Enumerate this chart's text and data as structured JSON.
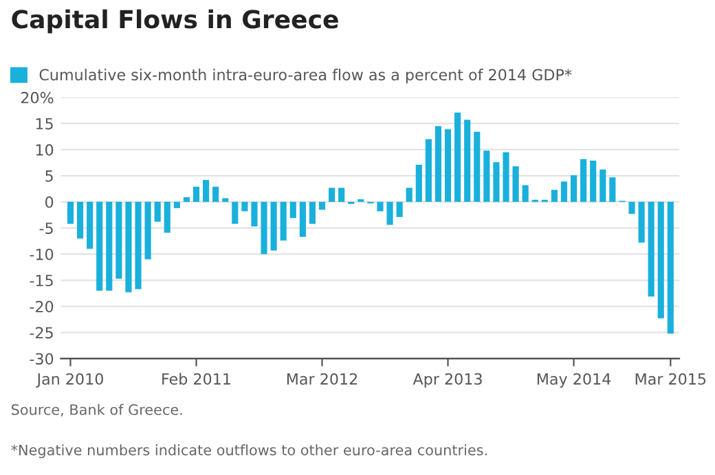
{
  "chart_data": {
    "type": "bar",
    "title": "Capital Flows in Greece",
    "categories": [
      "Jan 2010",
      null,
      null,
      null,
      null,
      null,
      null,
      null,
      null,
      null,
      null,
      null,
      null,
      "Feb 2011",
      null,
      null,
      null,
      null,
      null,
      null,
      null,
      null,
      null,
      null,
      null,
      null,
      "Mar 2012",
      null,
      null,
      null,
      null,
      null,
      null,
      null,
      null,
      null,
      null,
      null,
      null,
      "Apr 2013",
      null,
      null,
      null,
      null,
      null,
      null,
      null,
      null,
      null,
      null,
      null,
      null,
      "May 2014",
      null,
      null,
      null,
      null,
      null,
      null,
      null,
      null,
      null,
      "Mar 2015"
    ],
    "series": [
      {
        "name": "Cumulative six-month intra-euro-area flow as a percent of 2014 GDP*",
        "color": "#1ab0dc",
        "values": [
          -4.2,
          -7,
          -9,
          -17,
          -17,
          -14.7,
          -17.3,
          -16.7,
          -11,
          -3.8,
          -5.9,
          -1.2,
          0.9,
          2.9,
          4.2,
          2.9,
          0.7,
          -4.2,
          -1.8,
          -4.7,
          -10,
          -9.3,
          -7.4,
          -3.1,
          -6.7,
          -4.2,
          -1.5,
          2.7,
          2.7,
          -0.4,
          0.5,
          -0.3,
          -1.8,
          -4.4,
          -2.9,
          2.7,
          7.1,
          12,
          14.5,
          13.9,
          17.1,
          15.7,
          13.4,
          9.8,
          7.6,
          9.5,
          6.8,
          3.2,
          0.4,
          0.4,
          2.3,
          3.9,
          5.1,
          8.2,
          7.9,
          6.2,
          4.7,
          0.2,
          -2.3,
          -7.8,
          -18.1,
          -22.3,
          -25.2
        ]
      }
    ],
    "ylim": [
      -30,
      20
    ],
    "yticks": [
      {
        "value": 20,
        "label": "20%"
      },
      15,
      10,
      5,
      0,
      -5,
      -10,
      -15,
      -20,
      -25,
      -30
    ],
    "grid": "y",
    "legend": "top left",
    "annotations": [
      "Source, Bank of Greece.",
      "*Negative numbers indicate outflows to other euro-area countries."
    ]
  }
}
